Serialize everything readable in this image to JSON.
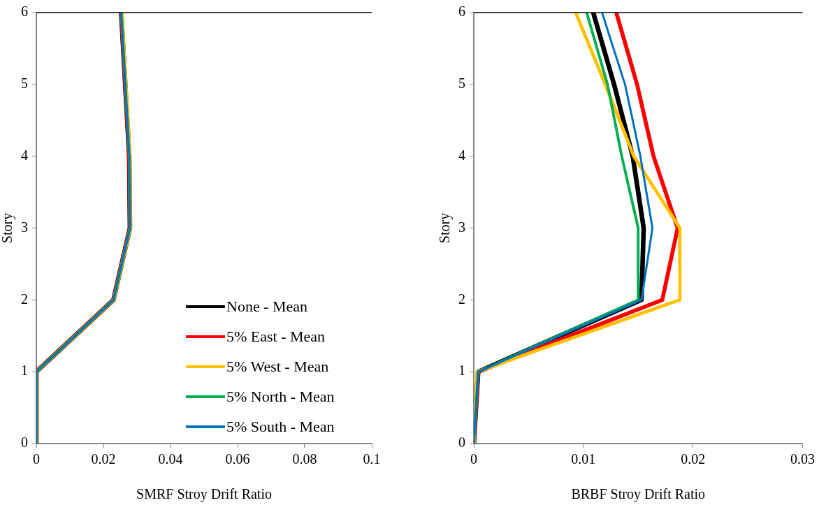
{
  "chart_data": [
    {
      "type": "line",
      "xlabel": "SMRF Stroy Drift Ratio",
      "ylabel": "Story",
      "xlim": [
        0,
        0.1
      ],
      "xticks": [
        0,
        0.02,
        0.04,
        0.06,
        0.08,
        0.1
      ],
      "ylim": [
        0,
        6
      ],
      "yticks": [
        0,
        1,
        2,
        3,
        4,
        5,
        6
      ],
      "grid": false,
      "legend": "bottom right",
      "marker": "none",
      "line_style": "solid",
      "series": [
        {
          "name": "None - Mean",
          "color": "#000000",
          "x": [
            0,
            0,
            0.023,
            0.0279,
            0.0277,
            0.0265,
            0.0253
          ],
          "values": [
            0,
            1,
            2,
            3,
            4,
            5,
            6
          ]
        },
        {
          "name": "5% East - Mean",
          "color": "#ff0000",
          "x": [
            0,
            0,
            0.023,
            0.0279,
            0.0277,
            0.0265,
            0.0253
          ],
          "values": [
            0,
            1,
            2,
            3,
            4,
            5,
            6
          ]
        },
        {
          "name": "5% West - Mean",
          "color": "#ffc000",
          "x": [
            0,
            0,
            0.0231,
            0.028,
            0.0279,
            0.0267,
            0.0255
          ],
          "values": [
            0,
            1,
            2,
            3,
            4,
            5,
            6
          ]
        },
        {
          "name": "5% North - Mean",
          "color": "#00b050",
          "x": [
            0,
            0,
            0.023,
            0.0279,
            0.0277,
            0.0265,
            0.0253
          ],
          "values": [
            0,
            1,
            2,
            3,
            4,
            5,
            6
          ]
        },
        {
          "name": "5% South - Mean",
          "color": "#0070c0",
          "x": [
            0,
            0,
            0.023,
            0.0279,
            0.0277,
            0.0265,
            0.0253
          ],
          "values": [
            0,
            1,
            2,
            3,
            4,
            5,
            6
          ]
        }
      ]
    },
    {
      "type": "line",
      "xlabel": "BRBF Stroy Drift Ratio",
      "ylabel": "Story",
      "xlim": [
        0,
        0.03
      ],
      "xticks": [
        0,
        0.01,
        0.02,
        0.03
      ],
      "ylim": [
        0,
        6
      ],
      "yticks": [
        0,
        1,
        2,
        3,
        4,
        5,
        6
      ],
      "grid": false,
      "marker": "none",
      "line_style": "solid",
      "series": [
        {
          "color": "#000000",
          "x": [
            0,
            0.0004,
            0.0153,
            0.0155,
            0.0145,
            0.0128,
            0.0109
          ],
          "values": [
            0,
            1,
            2,
            3,
            4,
            5,
            6
          ]
        },
        {
          "color": "#ff0000",
          "x": [
            0,
            0.0004,
            0.0172,
            0.0186,
            0.0164,
            0.0149,
            0.013
          ],
          "values": [
            0,
            1,
            2,
            3,
            4,
            5,
            6
          ]
        },
        {
          "color": "#ffc000",
          "x": [
            0,
            0.0003,
            0.0188,
            0.0188,
            0.0146,
            0.012,
            0.0093
          ],
          "values": [
            0,
            1,
            2,
            3,
            4,
            5,
            6
          ]
        },
        {
          "color": "#00b050",
          "x": [
            0,
            0.0004,
            0.015,
            0.015,
            0.0135,
            0.0122,
            0.0103
          ],
          "values": [
            0,
            1,
            2,
            3,
            4,
            5,
            6
          ]
        },
        {
          "color": "#0070c0",
          "x": [
            0,
            0.0004,
            0.0153,
            0.0163,
            0.0152,
            0.0138,
            0.0117
          ],
          "values": [
            0,
            1,
            2,
            3,
            4,
            5,
            6
          ]
        }
      ]
    }
  ]
}
